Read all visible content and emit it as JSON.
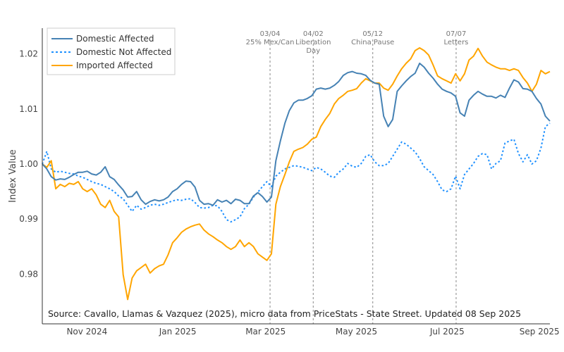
{
  "chart_data": {
    "type": "line",
    "title": "",
    "xlabel": "",
    "ylabel": "Index Value",
    "x_range": [
      "2024-10-02",
      "2025-09-08"
    ],
    "x_sampling": "evenly spaced samples across x_range",
    "ylim": [
      0.9725,
      1.0255
    ],
    "grid": false,
    "legend_position": "top-left",
    "y_ticks": [
      {
        "value": 0.98,
        "label": "0.98"
      },
      {
        "value": 0.99,
        "label": "0.99"
      },
      {
        "value": 1.0,
        "label": "1.00"
      },
      {
        "value": 1.01,
        "label": "1.01"
      },
      {
        "value": 1.02,
        "label": "1.02"
      }
    ],
    "x_ticks": [
      {
        "date": "2024-11-01",
        "label": "Nov 2024"
      },
      {
        "date": "2025-01-01",
        "label": "Jan 2025"
      },
      {
        "date": "2025-03-01",
        "label": "Mar 2025"
      },
      {
        "date": "2025-05-01",
        "label": "May 2025"
      },
      {
        "date": "2025-07-01",
        "label": "Jul 2025"
      },
      {
        "date": "2025-09-01",
        "label": "Sep 2025"
      }
    ],
    "annotations": [
      {
        "date": "2025-03-04",
        "lines": [
          "03/04",
          "25% Mex/Can"
        ]
      },
      {
        "date": "2025-04-02",
        "lines": [
          "04/02",
          "Liberation",
          "Day"
        ]
      },
      {
        "date": "2025-05-12",
        "lines": [
          "05/12",
          "China Pause"
        ]
      },
      {
        "date": "2025-07-07",
        "lines": [
          "07/07",
          "Letters"
        ]
      }
    ],
    "source_note": "Source: Cavallo, Llamas & Vazquez (2025), micro data from PriceStats - State Street. Updated 08 Sep 2025",
    "series": [
      {
        "name": "Domestic Affected",
        "color": "#4682b4",
        "style": "solid",
        "values": [
          1.0,
          0.9991,
          0.9977,
          0.9971,
          0.9973,
          0.9972,
          0.9976,
          0.9981,
          0.9985,
          0.9985,
          0.9987,
          0.9982,
          0.998,
          0.9985,
          0.9995,
          0.9977,
          0.9972,
          0.9962,
          0.9953,
          0.994,
          0.9941,
          0.995,
          0.9935,
          0.9927,
          0.9932,
          0.9935,
          0.9933,
          0.9935,
          0.994,
          0.995,
          0.9955,
          0.9963,
          0.9969,
          0.9968,
          0.9958,
          0.9934,
          0.9927,
          0.9928,
          0.9925,
          0.9935,
          0.9931,
          0.9934,
          0.9928,
          0.9936,
          0.9934,
          0.9928,
          0.9928,
          0.9942,
          0.9948,
          0.9941,
          0.9931,
          0.994,
          1.0006,
          1.0042,
          1.0074,
          1.0097,
          1.0111,
          1.0116,
          1.0116,
          1.0119,
          1.0124,
          1.0136,
          1.0138,
          1.0136,
          1.0138,
          1.0143,
          1.015,
          1.0161,
          1.0166,
          1.0168,
          1.0165,
          1.0164,
          1.0161,
          1.0152,
          1.0147,
          1.0145,
          1.0087,
          1.0068,
          1.0081,
          1.0132,
          1.0142,
          1.0151,
          1.0159,
          1.0165,
          1.0183,
          1.0176,
          1.0165,
          1.0156,
          1.0145,
          1.0136,
          1.0132,
          1.0129,
          1.0123,
          1.0093,
          1.0087,
          1.0116,
          1.0125,
          1.0132,
          1.0127,
          1.0123,
          1.0123,
          1.012,
          1.0125,
          1.0121,
          1.0138,
          1.0153,
          1.0149,
          1.0137,
          1.0136,
          1.0132,
          1.0119,
          1.0109,
          1.0087,
          1.0078
        ]
      },
      {
        "name": "Domestic Not Affected",
        "color": "#1e90ff",
        "style": "dotted",
        "values": [
          1.0,
          1.0023,
          0.9991,
          0.9985,
          0.9987,
          0.9985,
          0.9983,
          0.9982,
          0.9978,
          0.9976,
          0.9972,
          0.9968,
          0.9965,
          0.9963,
          0.9959,
          0.9955,
          0.995,
          0.9942,
          0.9937,
          0.9925,
          0.9914,
          0.9925,
          0.9918,
          0.9921,
          0.9925,
          0.9927,
          0.9925,
          0.9927,
          0.993,
          0.9933,
          0.9935,
          0.9934,
          0.9936,
          0.9937,
          0.993,
          0.9921,
          0.992,
          0.9921,
          0.9925,
          0.9924,
          0.9914,
          0.9899,
          0.9895,
          0.9899,
          0.9904,
          0.9919,
          0.9927,
          0.994,
          0.9949,
          0.9959,
          0.9968,
          0.9959,
          0.9978,
          0.9985,
          0.9991,
          0.9994,
          0.9997,
          0.9996,
          0.9994,
          0.9991,
          0.9988,
          0.9994,
          0.9991,
          0.9985,
          0.9978,
          0.9976,
          0.9985,
          0.9991,
          1.0001,
          0.9996,
          0.9994,
          1.0001,
          1.0014,
          1.0017,
          1.0004,
          0.9997,
          0.9997,
          1.0001,
          1.0014,
          1.0027,
          1.004,
          1.0036,
          1.0029,
          1.0022,
          1.001,
          0.9995,
          0.9988,
          0.9981,
          0.9968,
          0.9953,
          0.995,
          0.9955,
          0.9978,
          0.9955,
          0.9981,
          0.9991,
          1.0001,
          1.0014,
          1.0019,
          1.0017,
          0.9991,
          1.0001,
          1.0006,
          1.0038,
          1.0042,
          1.0045,
          1.0019,
          1.0004,
          1.0017,
          1.0,
          1.0006,
          1.0029,
          1.0068,
          1.0074
        ]
      },
      {
        "name": "Imported Affected",
        "color": "#ffa500",
        "style": "solid",
        "values": [
          1.0,
          0.9994,
          1.0006,
          0.9955,
          0.9963,
          0.9959,
          0.9965,
          0.9963,
          0.9968,
          0.9955,
          0.995,
          0.9955,
          0.9944,
          0.9927,
          0.9921,
          0.9934,
          0.9914,
          0.9904,
          0.9799,
          0.9754,
          0.9793,
          0.9806,
          0.9812,
          0.9818,
          0.9802,
          0.981,
          0.9815,
          0.9818,
          0.9835,
          0.9857,
          0.9866,
          0.9876,
          0.9882,
          0.9886,
          0.9889,
          0.9891,
          0.988,
          0.9873,
          0.9868,
          0.9862,
          0.9857,
          0.985,
          0.9845,
          0.985,
          0.9862,
          0.985,
          0.9857,
          0.985,
          0.9837,
          0.9831,
          0.9825,
          0.9837,
          0.9927,
          0.9959,
          0.9981,
          1.0004,
          1.0023,
          1.0027,
          1.003,
          1.0036,
          1.0045,
          1.0049,
          1.0068,
          1.0081,
          1.0092,
          1.0109,
          1.0119,
          1.0125,
          1.0132,
          1.0134,
          1.0137,
          1.0147,
          1.0155,
          1.0151,
          1.0147,
          1.0147,
          1.0138,
          1.0134,
          1.0145,
          1.016,
          1.0173,
          1.0183,
          1.0191,
          1.0206,
          1.0211,
          1.0206,
          1.0198,
          1.018,
          1.016,
          1.0155,
          1.0151,
          1.0147,
          1.0164,
          1.0151,
          1.0164,
          1.0189,
          1.0196,
          1.021,
          1.0196,
          1.0185,
          1.018,
          1.0176,
          1.0173,
          1.0173,
          1.017,
          1.0173,
          1.017,
          1.0157,
          1.0147,
          1.0132,
          1.0145,
          1.017,
          1.0164,
          1.0168
        ]
      }
    ]
  }
}
